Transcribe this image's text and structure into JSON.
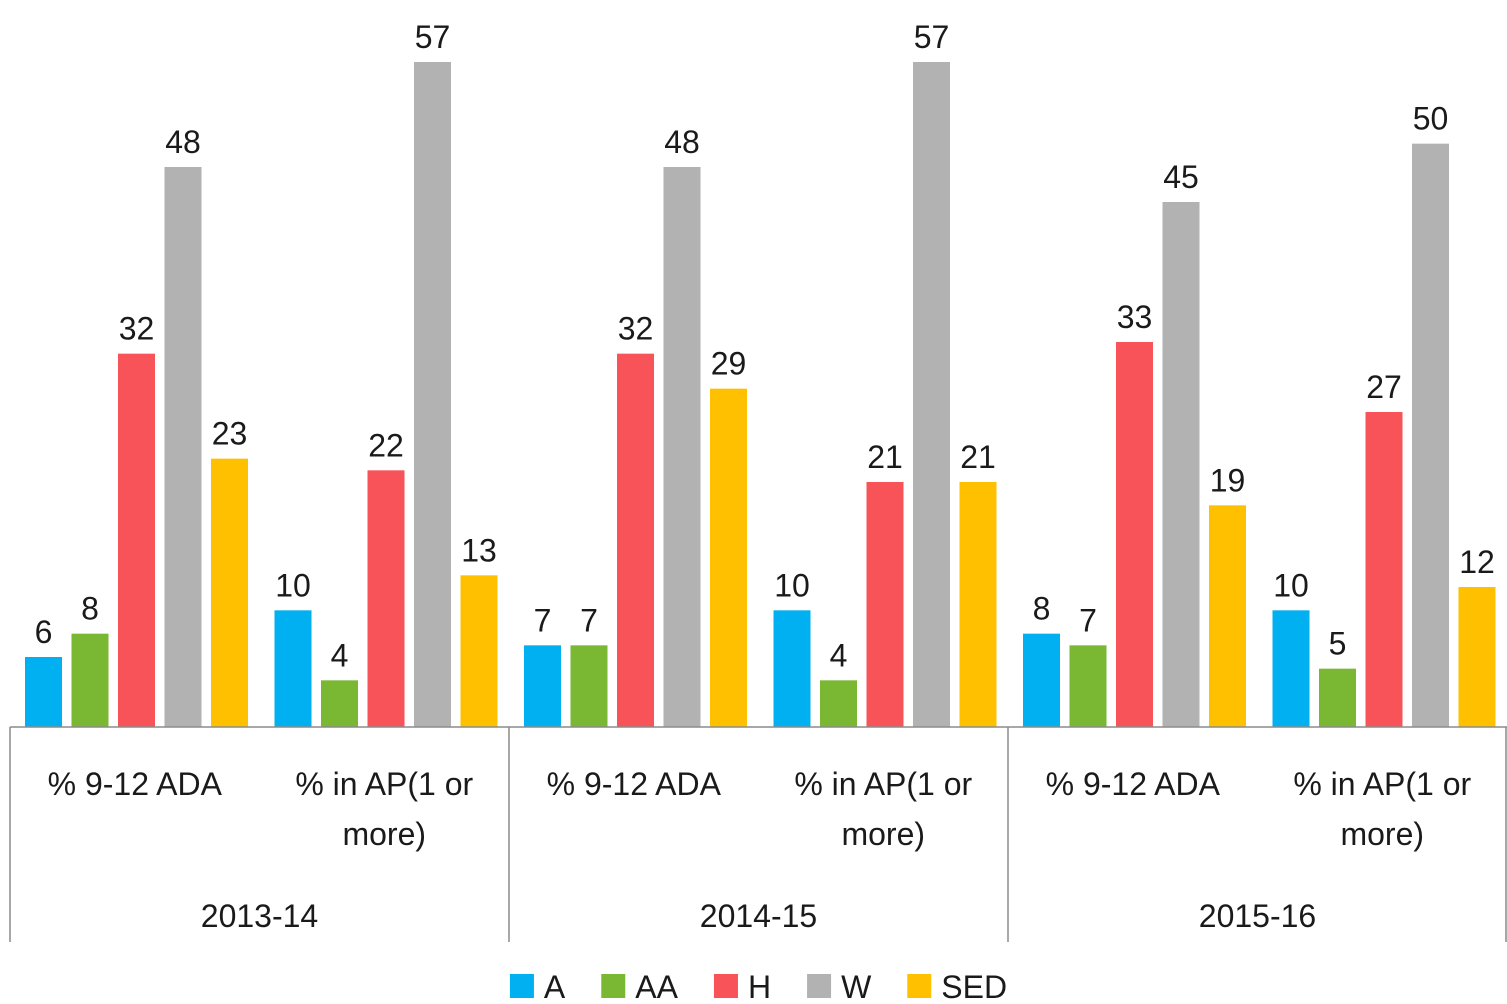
{
  "chart_data": {
    "type": "bar",
    "categories": [
      "% 9-12 ADA",
      "% in AP(1 or more)",
      "% 9-12 ADA",
      "% in AP(1 or more)",
      "% 9-12 ADA",
      "% in AP(1 or more)"
    ],
    "groups": [
      "2013-14",
      "2014-15",
      "2015-16"
    ],
    "series": [
      {
        "name": "A",
        "color": "#00b0f0",
        "values": [
          6,
          10,
          7,
          10,
          8,
          10
        ]
      },
      {
        "name": "AA",
        "color": "#7ab733",
        "values": [
          8,
          4,
          7,
          4,
          7,
          5
        ]
      },
      {
        "name": "H",
        "color": "#f85358",
        "values": [
          32,
          22,
          32,
          21,
          33,
          27
        ]
      },
      {
        "name": "W",
        "color": "#b2b2b2",
        "values": [
          48,
          57,
          48,
          57,
          45,
          50
        ]
      },
      {
        "name": "SED",
        "color": "#ffc000",
        "values": [
          23,
          13,
          29,
          21,
          19,
          12
        ]
      }
    ],
    "legend": "bottom"
  }
}
